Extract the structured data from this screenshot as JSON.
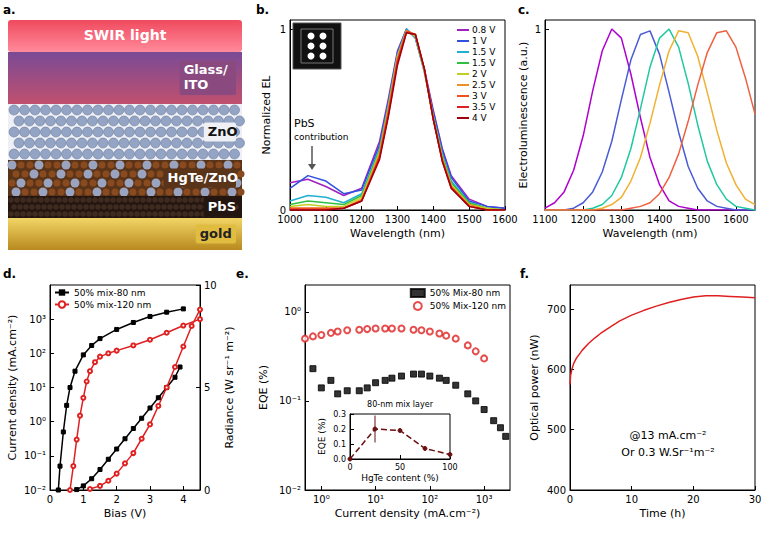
{
  "diagram": {
    "title": "a.",
    "light": "SWIR light",
    "layers": [
      [
        "Glass/",
        "ITO"
      ],
      [
        "ZnO"
      ],
      [
        "HgTe/ZnO"
      ],
      [
        "PbS"
      ],
      [
        "gold"
      ]
    ]
  },
  "chart_data": [
    {
      "type": "line",
      "title": "b.",
      "xlabel": "Wavelength (nm)",
      "ylabel": "Normalized EL",
      "x": [
        1000,
        1050,
        1100,
        1150,
        1200,
        1250,
        1275,
        1300,
        1325,
        1350,
        1375,
        1400,
        1425,
        1450,
        1500,
        1550,
        1600
      ],
      "series": [
        {
          "name": "0.8 V",
          "color": "#a020c0",
          "values": [
            0.15,
            0.17,
            0.13,
            0.08,
            0.12,
            0.38,
            0.62,
            0.88,
            1.0,
            0.95,
            0.78,
            0.55,
            0.34,
            0.19,
            0.06,
            0.02,
            0.01
          ]
        },
        {
          "name": "1 V",
          "color": "#3050e0",
          "values": [
            0.12,
            0.19,
            0.16,
            0.09,
            0.11,
            0.36,
            0.6,
            0.87,
            1.0,
            0.95,
            0.77,
            0.54,
            0.33,
            0.18,
            0.05,
            0.02,
            0.01
          ]
        },
        {
          "name": "1.5 V",
          "color": "#20b0d0",
          "values": [
            0.05,
            0.08,
            0.07,
            0.04,
            0.09,
            0.34,
            0.59,
            0.86,
            1.0,
            0.95,
            0.76,
            0.52,
            0.31,
            0.16,
            0.04,
            0.01,
            0
          ]
        },
        {
          "name": "1.5 V",
          "color": "#30c040",
          "values": [
            0.03,
            0.05,
            0.04,
            0.03,
            0.08,
            0.33,
            0.58,
            0.85,
            0.99,
            0.96,
            0.77,
            0.51,
            0.3,
            0.15,
            0.04,
            0.01,
            0
          ]
        },
        {
          "name": "2 V",
          "color": "#c0d020",
          "values": [
            0.02,
            0.03,
            0.02,
            0.02,
            0.07,
            0.32,
            0.57,
            0.85,
            0.99,
            0.96,
            0.77,
            0.51,
            0.29,
            0.14,
            0.03,
            0.01,
            0
          ]
        },
        {
          "name": "2.5 V",
          "color": "#f09020",
          "values": [
            0.01,
            0.01,
            0.01,
            0.01,
            0.06,
            0.31,
            0.56,
            0.84,
            0.99,
            0.97,
            0.77,
            0.5,
            0.28,
            0.13,
            0.03,
            0,
            0
          ]
        },
        {
          "name": "3 V",
          "color": "#f05020",
          "values": [
            0.01,
            0.01,
            0.01,
            0.01,
            0.05,
            0.3,
            0.55,
            0.83,
            0.99,
            0.97,
            0.78,
            0.5,
            0.28,
            0.13,
            0.02,
            0,
            0
          ]
        },
        {
          "name": "3.5 V",
          "color": "#e02020",
          "values": [
            0,
            0,
            0,
            0.01,
            0.05,
            0.29,
            0.53,
            0.82,
            0.98,
            0.97,
            0.78,
            0.5,
            0.27,
            0.12,
            0.02,
            0,
            0
          ]
        },
        {
          "name": "4 V",
          "color": "#a00010",
          "values": [
            0,
            0,
            0,
            0.01,
            0.05,
            0.28,
            0.52,
            0.8,
            0.98,
            0.97,
            0.78,
            0.5,
            0.27,
            0.12,
            0.02,
            0,
            0
          ]
        }
      ],
      "xlim": [
        1000,
        1600
      ],
      "xticks": [
        1000,
        1100,
        1200,
        1300,
        1400,
        1500,
        1600
      ],
      "ylim": [
        0,
        1.05
      ],
      "yticks": [
        0,
        1
      ],
      "grid": false,
      "legend": "upper right",
      "annotations": [
        "PbS",
        "contribution"
      ]
    },
    {
      "type": "line",
      "title": "c.",
      "xlabel": "Wavelength (nm)",
      "ylabel": "Electroluminescence (a.u.)",
      "x": [
        1100,
        1125,
        1150,
        1175,
        1200,
        1225,
        1250,
        1275,
        1300,
        1325,
        1350,
        1375,
        1400,
        1425,
        1450,
        1475,
        1500,
        1525,
        1550,
        1575,
        1600,
        1625,
        1650
      ],
      "series": [
        {
          "color": "#b000d0",
          "values": [
            0.01,
            0.04,
            0.1,
            0.22,
            0.41,
            0.66,
            0.88,
            1.0,
            0.95,
            0.75,
            0.51,
            0.29,
            0.14,
            0.05,
            0.02,
            0.01,
            0,
            0,
            0,
            0,
            0,
            0,
            0
          ]
        },
        {
          "color": "#4a5bd6",
          "values": [
            0,
            0,
            0,
            0.01,
            0.04,
            0.1,
            0.21,
            0.38,
            0.61,
            0.83,
            0.97,
            0.99,
            0.86,
            0.65,
            0.43,
            0.24,
            0.12,
            0.05,
            0.02,
            0.01,
            0,
            0,
            0
          ]
        },
        {
          "color": "#20c8a0",
          "values": [
            0,
            0,
            0,
            0,
            0,
            0.01,
            0.03,
            0.08,
            0.18,
            0.34,
            0.56,
            0.79,
            0.95,
            1.0,
            0.9,
            0.7,
            0.47,
            0.27,
            0.14,
            0.06,
            0.02,
            0.01,
            0
          ]
        },
        {
          "color": "#f0b030",
          "values": [
            0,
            0,
            0,
            0,
            0,
            0,
            0.01,
            0.03,
            0.07,
            0.16,
            0.29,
            0.48,
            0.69,
            0.88,
            0.99,
            0.98,
            0.85,
            0.65,
            0.44,
            0.26,
            0.14,
            0.06,
            0.03
          ]
        },
        {
          "color": "#f06040",
          "values": [
            0,
            0,
            0,
            0,
            0,
            0,
            0,
            0,
            0,
            0.01,
            0.02,
            0.04,
            0.09,
            0.18,
            0.31,
            0.49,
            0.69,
            0.87,
            0.98,
            0.99,
            0.9,
            0.73,
            0.53
          ]
        }
      ],
      "xlim": [
        1100,
        1650
      ],
      "xticks": [
        1100,
        1200,
        1300,
        1400,
        1500,
        1600
      ],
      "ylim": [
        0,
        1.05
      ],
      "yticks": [
        1
      ],
      "grid": false
    },
    {
      "type": "line",
      "title": "d.",
      "xlabel": "Bias (V)",
      "ylabel": "Current density (mA.cm⁻²)",
      "y2label": "Radiance (W sr⁻¹ m⁻²)",
      "log": "y",
      "series": [
        {
          "name": "50% mix-80 nm",
          "color": "#000000",
          "marker": "square",
          "axis": "y",
          "x": [
            0.25,
            0.3,
            0.4,
            0.5,
            0.6,
            0.75,
            1.0,
            1.25,
            1.5,
            2.0,
            2.5,
            3.0,
            3.5,
            4.0
          ],
          "values": [
            0.01,
            0.05,
            0.5,
            3,
            10,
            30,
            90,
            170,
            270,
            500,
            800,
            1200,
            1600,
            2000
          ]
        },
        {
          "name": "50% mix-120 nm",
          "color": "#e02020",
          "marker": "open_circle",
          "axis": "y",
          "x": [
            0.6,
            0.7,
            0.8,
            0.9,
            1.0,
            1.1,
            1.2,
            1.35,
            1.5,
            1.75,
            2.0,
            2.5,
            3.0,
            3.5,
            4.0,
            4.5
          ],
          "values": [
            0.01,
            0.05,
            0.3,
            1.5,
            5,
            15,
            30,
            55,
            80,
            100,
            120,
            170,
            250,
            400,
            650,
            1000
          ]
        },
        {
          "name": "50% mix-80 nm",
          "color": "#000000",
          "marker": "square",
          "axis": "y2",
          "x": [
            0.8,
            1.0,
            1.25,
            1.5,
            1.75,
            2.0,
            2.25,
            2.5,
            2.75,
            3.0,
            3.25,
            3.5,
            3.75,
            3.9
          ],
          "values": [
            0.02,
            0.2,
            0.55,
            1.0,
            1.5,
            2.0,
            2.5,
            3.0,
            3.5,
            4.0,
            4.5,
            5.0,
            5.5,
            6.0
          ]
        },
        {
          "name": "50% mix-120 nm",
          "color": "#e02020",
          "marker": "open_circle",
          "axis": "y2",
          "x": [
            1.2,
            1.5,
            1.75,
            2.0,
            2.25,
            2.5,
            2.75,
            3.0,
            3.25,
            3.5,
            3.75,
            4.0,
            4.25,
            4.5
          ],
          "values": [
            0.05,
            0.2,
            0.45,
            0.8,
            1.3,
            1.8,
            2.5,
            3.2,
            4.1,
            5.0,
            6.0,
            7.0,
            8.0,
            8.8
          ]
        }
      ],
      "xlim": [
        0,
        4.5
      ],
      "xticks": [
        0,
        1,
        2,
        3,
        4
      ],
      "ylim": [
        0.01,
        10000
      ],
      "yticks": [
        {
          "value": 0.01,
          "label": "10⁻²"
        },
        {
          "value": 0.1,
          "label": "10⁻¹"
        },
        {
          "value": 1,
          "label": "10⁰"
        },
        {
          "value": 10,
          "label": "10¹"
        },
        {
          "value": 100,
          "label": "10²"
        },
        {
          "value": 1000,
          "label": "10³"
        }
      ],
      "y2lim": [
        0,
        10
      ],
      "y2ticks": [
        0,
        5,
        10
      ],
      "grid": false,
      "legend": "upper left"
    },
    {
      "type": "scatter",
      "title": "e.",
      "xlabel": "Current density (mA.cm⁻²)",
      "ylabel": "EQE (%)",
      "log": true,
      "series": [
        {
          "name": "50% Mix-80 nm",
          "color": "#000000",
          "marker": "square",
          "x": [
            0.7,
            1,
            1.5,
            2,
            3,
            5,
            7,
            10,
            15,
            20,
            30,
            50,
            70,
            100,
            150,
            200,
            300,
            500,
            700,
            1000,
            1500,
            2000,
            2500
          ],
          "values": [
            0.23,
            0.14,
            0.17,
            0.12,
            0.13,
            0.13,
            0.14,
            0.16,
            0.17,
            0.18,
            0.19,
            0.2,
            0.2,
            0.19,
            0.18,
            0.17,
            0.15,
            0.12,
            0.1,
            0.08,
            0.06,
            0.05,
            0.04
          ]
        },
        {
          "name": "50% Mix-120 nm",
          "color": "#e02020",
          "marker": "open_circle",
          "x": [
            0.5,
            0.7,
            1,
            1.5,
            2,
            3,
            5,
            7,
            10,
            15,
            20,
            30,
            50,
            70,
            100,
            150,
            200,
            300,
            500,
            700,
            1000
          ],
          "values": [
            0.5,
            0.53,
            0.55,
            0.58,
            0.6,
            0.62,
            0.63,
            0.64,
            0.65,
            0.65,
            0.65,
            0.65,
            0.63,
            0.62,
            0.6,
            0.57,
            0.54,
            0.5,
            0.42,
            0.36,
            0.3
          ]
        }
      ],
      "xlim": [
        0.5,
        3000
      ],
      "xticks": [
        {
          "value": 1,
          "label": "10⁰"
        },
        {
          "value": 10,
          "label": "10¹"
        },
        {
          "value": 100,
          "label": "10²"
        },
        {
          "value": 1000,
          "label": "10³"
        }
      ],
      "ylim": [
        0.01,
        2
      ],
      "yticks": [
        {
          "value": 0.01,
          "label": "10⁻²"
        },
        {
          "value": 0.1,
          "label": "10⁻¹"
        },
        {
          "value": 1,
          "label": "10⁰"
        }
      ],
      "grid": false,
      "legend": "upper right",
      "inset": {
        "type": "line",
        "title": "80-nm mix layer",
        "xlabel": "HgTe content (%)",
        "ylabel": "EQE (%)",
        "x": [
          0,
          25,
          50,
          75,
          100
        ],
        "series": [
          {
            "color": "#6a1010",
            "marker": "circle",
            "line_style": "dashed",
            "values": [
              0,
              0.2,
              0.19,
              0.07,
              0.03
            ],
            "errors": [
              0,
              0.09,
              0,
              0,
              0
            ]
          }
        ],
        "xlim": [
          0,
          100
        ],
        "xticks": [
          0,
          50,
          100
        ],
        "ylim": [
          0,
          0.3
        ],
        "yticks": [
          {
            "value": 0,
            "label": "0.0"
          },
          0.1,
          0.2,
          0.3
        ],
        "grid": false
      }
    },
    {
      "type": "line",
      "title": "f.",
      "xlabel": "Time (h)",
      "ylabel": "Optical power (nW)",
      "x": [
        0,
        0.1,
        0.3,
        0.6,
        1,
        1.5,
        2,
        3,
        4,
        5,
        6,
        8,
        10,
        12,
        14,
        16,
        18,
        20,
        22,
        24,
        26,
        28,
        30
      ],
      "series": [
        {
          "color": "#e02020",
          "values": [
            575,
            590,
            600,
            610,
            618,
            625,
            632,
            643,
            652,
            660,
            667,
            680,
            690,
            698,
            705,
            711,
            716,
            720,
            722,
            722,
            721,
            720,
            719
          ]
        }
      ],
      "xlim": [
        0,
        30
      ],
      "xticks": [
        0,
        10,
        20,
        30
      ],
      "ylim": [
        400,
        740
      ],
      "yticks": [
        400,
        500,
        600,
        700
      ],
      "grid": false,
      "annotations": [
        "@13 mA.cm⁻²",
        "Or 0.3 W.Sr⁻¹m⁻²"
      ]
    }
  ]
}
